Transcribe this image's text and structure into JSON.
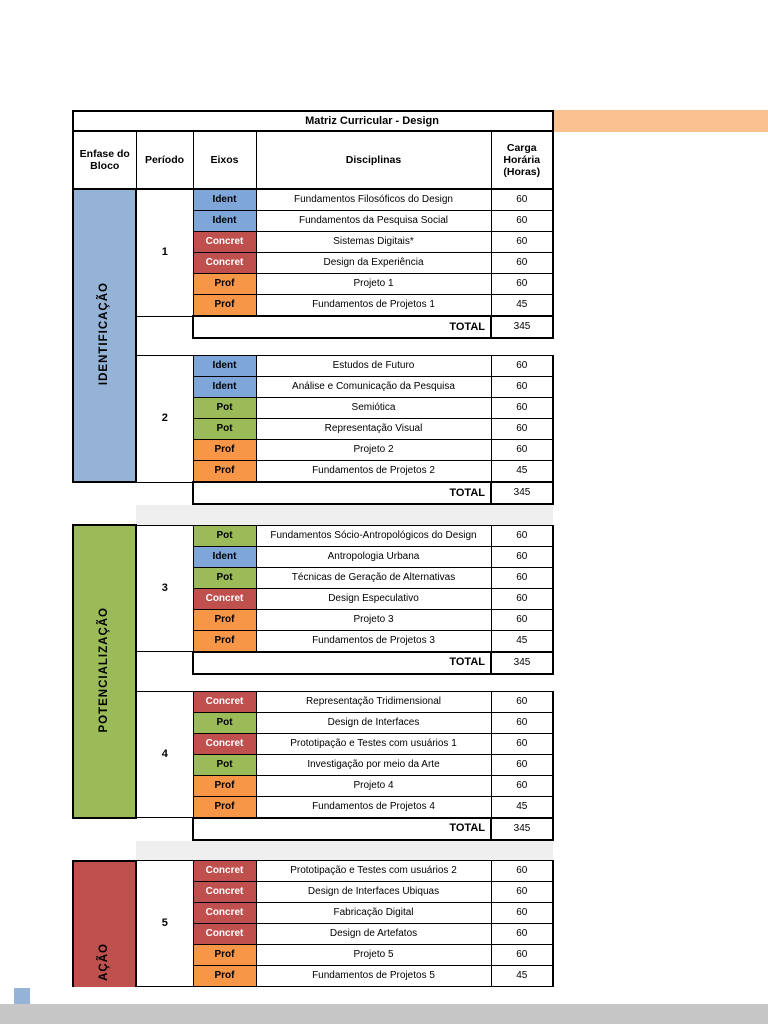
{
  "document": {
    "banner_color": "#FAC090",
    "page_background": "#FFFFFF",
    "bottom_bar_color": "#C6C6C6",
    "next_page_fragment_color": "#95B3D7"
  },
  "table": {
    "title": "Matriz Curricular - Design",
    "headers": [
      "Enfase do Bloco",
      "Período",
      "Eixos",
      "Disciplinas",
      "Carga Horária (Horas)"
    ],
    "total_label": "TOTAL",
    "eixo_styles": {
      "Ident": {
        "bg": "#7EA6D8",
        "text": "#000000"
      },
      "Concret": {
        "bg": "#C0504D",
        "text": "#FFFFFF"
      },
      "Prof": {
        "bg": "#F79646",
        "text": "#000000"
      },
      "Pot": {
        "bg": "#9BBB59",
        "text": "#000000"
      }
    },
    "blocks": [
      {
        "label": "IDENTIFICAÇÃO",
        "color": "#95B3D7",
        "clipped": false,
        "gap_after": true,
        "periods": [
          {
            "number": "1",
            "rows": [
              [
                "Ident",
                "Fundamentos Filosóficos do Design",
                "60"
              ],
              [
                "Ident",
                "Fundamentos da Pesquisa Social",
                "60"
              ],
              [
                "Concret",
                "Sistemas Digitais*",
                "60"
              ],
              [
                "Concret",
                "Design da Experiência",
                "60"
              ],
              [
                "Prof",
                "Projeto 1",
                "60"
              ],
              [
                "Prof",
                "Fundamentos de Projetos 1",
                "45"
              ]
            ],
            "total": "345"
          },
          {
            "number": "2",
            "rows": [
              [
                "Ident",
                "Estudos de Futuro",
                "60"
              ],
              [
                "Ident",
                "Análise e Comunicação da Pesquisa",
                "60"
              ],
              [
                "Pot",
                "Semiótica",
                "60"
              ],
              [
                "Pot",
                "Representação Visual",
                "60"
              ],
              [
                "Prof",
                "Projeto 2",
                "60"
              ],
              [
                "Prof",
                "Fundamentos de Projetos 2",
                "45"
              ]
            ],
            "total": "345"
          }
        ]
      },
      {
        "label": "POTENCIALIZAÇÃO",
        "color": "#9BBB59",
        "clipped": false,
        "gap_after": true,
        "periods": [
          {
            "number": "3",
            "rows": [
              [
                "Pot",
                "Fundamentos Sócio-Antropológicos do Design",
                "60"
              ],
              [
                "Ident",
                "Antropologia Urbana",
                "60"
              ],
              [
                "Pot",
                "Técnicas de Geração de Alternativas",
                "60"
              ],
              [
                "Concret",
                "Design Especulativo",
                "60"
              ],
              [
                "Prof",
                "Projeto 3",
                "60"
              ],
              [
                "Prof",
                "Fundamentos de Projetos 3",
                "45"
              ]
            ],
            "total": "345"
          },
          {
            "number": "4",
            "rows": [
              [
                "Concret",
                "Representação Tridimensional",
                "60"
              ],
              [
                "Pot",
                "Design de Interfaces",
                "60"
              ],
              [
                "Concret",
                "Prototipação e Testes com usuários 1",
                "60"
              ],
              [
                "Pot",
                "Investigação por meio da Arte",
                "60"
              ],
              [
                "Prof",
                "Projeto 4",
                "60"
              ],
              [
                "Prof",
                "Fundamentos de Projetos 4",
                "45"
              ]
            ],
            "total": "345"
          }
        ]
      },
      {
        "label": "AÇÃO",
        "color": "#C0504D",
        "clipped": true,
        "gap_after": false,
        "periods": [
          {
            "number": "5",
            "rows": [
              [
                "Concret",
                "Prototipação e Testes com usuários 2",
                "60"
              ],
              [
                "Concret",
                "Design de Interfaces Ubiquas",
                "60"
              ],
              [
                "Concret",
                "Fabricação Digital",
                "60"
              ],
              [
                "Concret",
                "Design de Artefatos",
                "60"
              ],
              [
                "Prof",
                "Projeto 5",
                "60"
              ],
              [
                "Prof",
                "Fundamentos de Projetos 5",
                "45"
              ]
            ]
          }
        ]
      }
    ]
  }
}
